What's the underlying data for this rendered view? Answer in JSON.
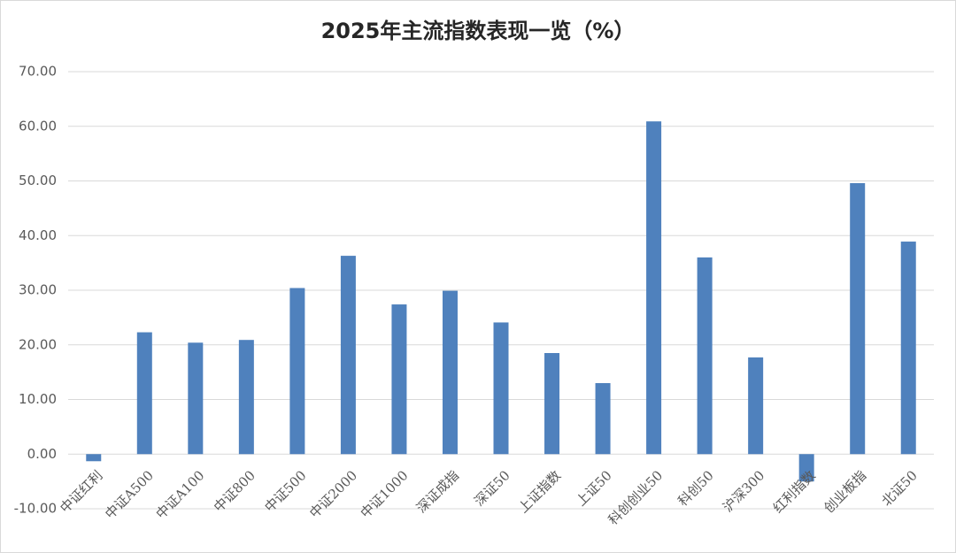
{
  "chart_data": {
    "type": "bar",
    "title": "2025年主流指数表现一览（%）",
    "categories": [
      "中证红利",
      "中证A500",
      "中证A100",
      "中证800",
      "中证500",
      "中证2000",
      "中证1000",
      "深证成指",
      "深证50",
      "上证指数",
      "上证50",
      "科创创业50",
      "科创50",
      "沪深300",
      "红利指数",
      "创业板指",
      "北证50"
    ],
    "values": [
      -1.3,
      22.3,
      20.4,
      20.9,
      30.4,
      36.3,
      27.4,
      29.9,
      24.1,
      18.5,
      13.0,
      60.9,
      36.0,
      17.7,
      -5.0,
      49.6,
      38.9
    ],
    "color": "#4f81bd",
    "ylim": [
      -10,
      70
    ],
    "yticks": [
      {
        "value": -10,
        "label": "-10.00"
      },
      {
        "value": 0,
        "label": "0.00"
      },
      {
        "value": 10,
        "label": "10.00"
      },
      {
        "value": 20,
        "label": "20.00"
      },
      {
        "value": 30,
        "label": "30.00"
      },
      {
        "value": 40,
        "label": "40.00"
      },
      {
        "value": 50,
        "label": "50.00"
      },
      {
        "value": 60,
        "label": "60.00"
      },
      {
        "value": 70,
        "label": "70.00"
      }
    ],
    "grid": true
  }
}
